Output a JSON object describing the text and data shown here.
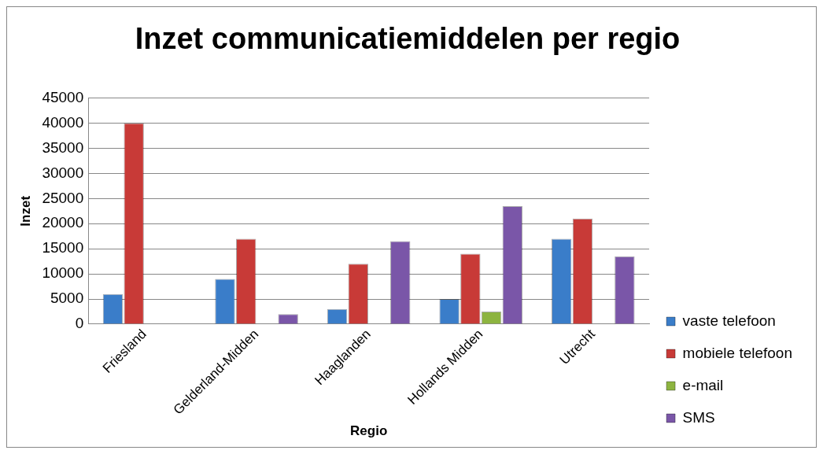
{
  "chart_data": {
    "type": "bar",
    "title": "Inzet communicatiemiddelen per regio",
    "xlabel": "Regio",
    "ylabel": "Inzet",
    "categories": [
      "Friesland",
      "Gelderland-Midden",
      "Haaglanden",
      "Hollands Midden",
      "Utrecht"
    ],
    "series": [
      {
        "name": "vaste telefoon",
        "color": "#3a7dc9",
        "values": [
          6000,
          9000,
          3000,
          5000,
          17000
        ]
      },
      {
        "name": "mobiele telefoon",
        "color": "#c83a37",
        "values": [
          40000,
          17000,
          12000,
          14000,
          21000
        ]
      },
      {
        "name": "e-mail",
        "color": "#8db440",
        "values": [
          null,
          null,
          null,
          2500,
          null
        ]
      },
      {
        "name": "SMS",
        "color": "#7a56a8",
        "values": [
          null,
          2000,
          16500,
          23500,
          13500
        ]
      }
    ],
    "ylim": [
      0,
      45000
    ],
    "yticks": [
      0,
      5000,
      10000,
      15000,
      20000,
      25000,
      30000,
      35000,
      40000,
      45000
    ],
    "grid": "y",
    "legend": "right"
  }
}
